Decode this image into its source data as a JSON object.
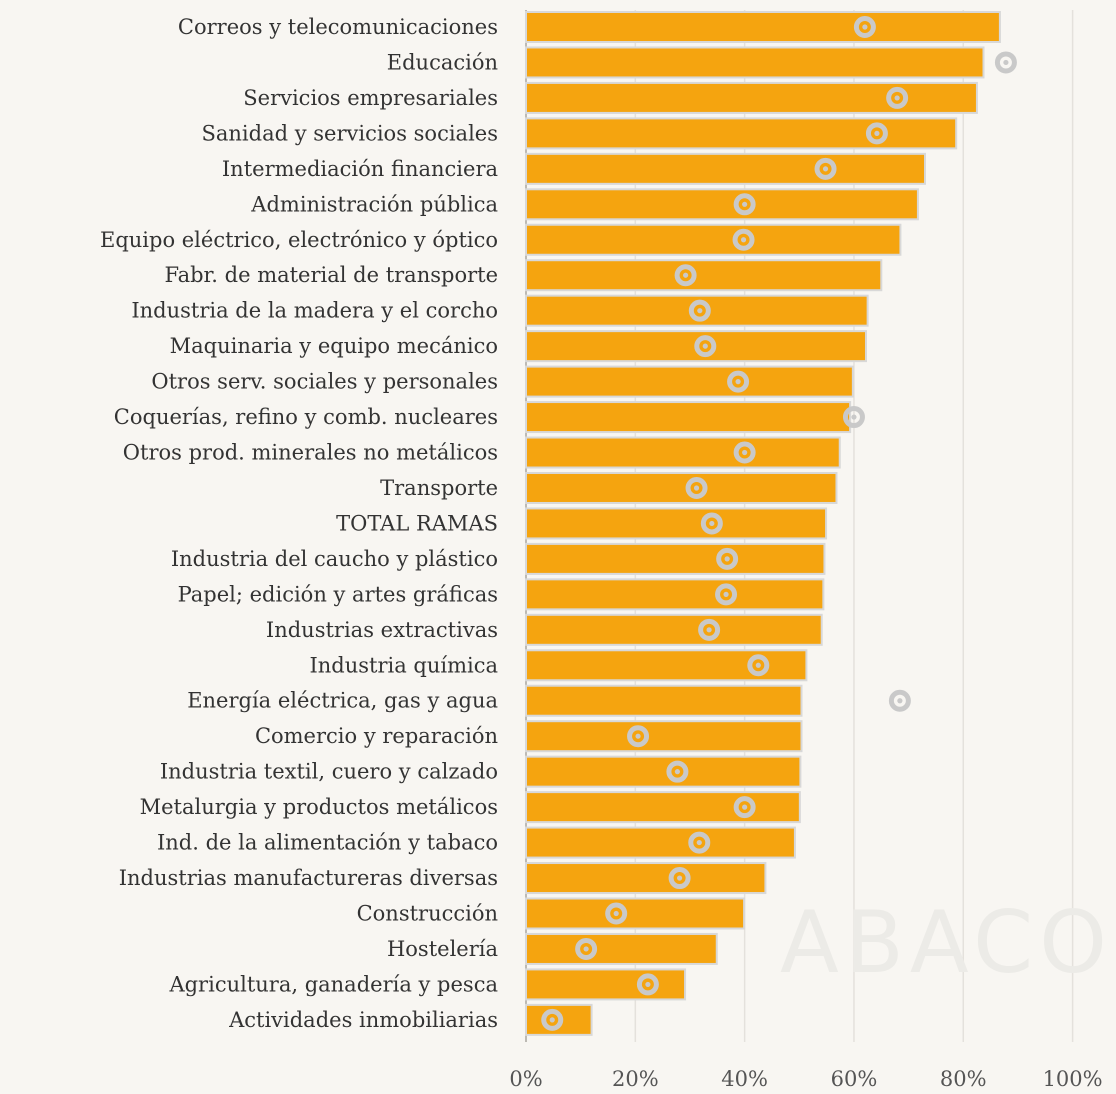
{
  "chart_data": {
    "type": "bar",
    "orientation": "horizontal",
    "title": "",
    "xlabel": "",
    "ylabel": "",
    "xlim": [
      0,
      100
    ],
    "x_ticks": [
      "0%",
      "20%",
      "40%",
      "60%",
      "80%",
      "100%"
    ],
    "grid": "vertical",
    "legend": "none",
    "watermark": "ABACO",
    "colors": {
      "bar": "#f5a40f",
      "bar_edge": "#d8d8d8",
      "marker": "#c9c9c9",
      "grid": "#e4e1dc"
    },
    "categories": [
      "Correos y telecomunicaciones",
      "Educación",
      "Servicios empresariales",
      "Sanidad y servicios sociales",
      "Intermediación financiera",
      "Administración pública",
      "Equipo eléctrico, electrónico y óptico",
      "Fabr. de material de transporte",
      "Industria de la madera y el corcho",
      "Maquinaria y equipo mecánico",
      "Otros serv. sociales y  personales",
      "Coquerías, refino y comb. nucleares",
      "Otros prod. minerales no metálicos",
      "Transporte",
      "TOTAL RAMAS",
      "Industria del caucho y plástico",
      "Papel; edición y artes gráficas",
      "Industrias extractivas",
      "Industria química",
      "Energía eléctrica, gas y agua",
      "Comercio y reparación ",
      "Industria textil, cuero y calzado",
      "Metalurgia y  productos metálicos",
      "Ind. de la alimentación y tabaco",
      "Industrias manufactureras diversas",
      "Construcción",
      "Hostelería",
      "Agricultura, ganadería y pesca",
      "Actividades inmobiliarias"
    ],
    "series": [
      {
        "type": "bar",
        "values": [
          86.7,
          83.7,
          82.5,
          78.7,
          73.0,
          71.7,
          68.5,
          65.0,
          62.5,
          62.2,
          59.8,
          59.3,
          57.4,
          56.8,
          54.9,
          54.6,
          54.4,
          54.1,
          51.3,
          50.4,
          50.4,
          50.2,
          50.1,
          49.2,
          43.8,
          39.9,
          34.9,
          29.1,
          12.0
        ]
      },
      {
        "type": "marker",
        "values": [
          62.0,
          87.8,
          67.9,
          64.2,
          54.8,
          40.0,
          39.8,
          29.2,
          31.8,
          32.8,
          38.8,
          60.0,
          40.0,
          31.2,
          34.0,
          36.8,
          36.6,
          33.5,
          42.5,
          68.4,
          20.5,
          27.7,
          40.0,
          31.7,
          28.1,
          16.5,
          11.0,
          22.3,
          4.8
        ]
      }
    ]
  }
}
